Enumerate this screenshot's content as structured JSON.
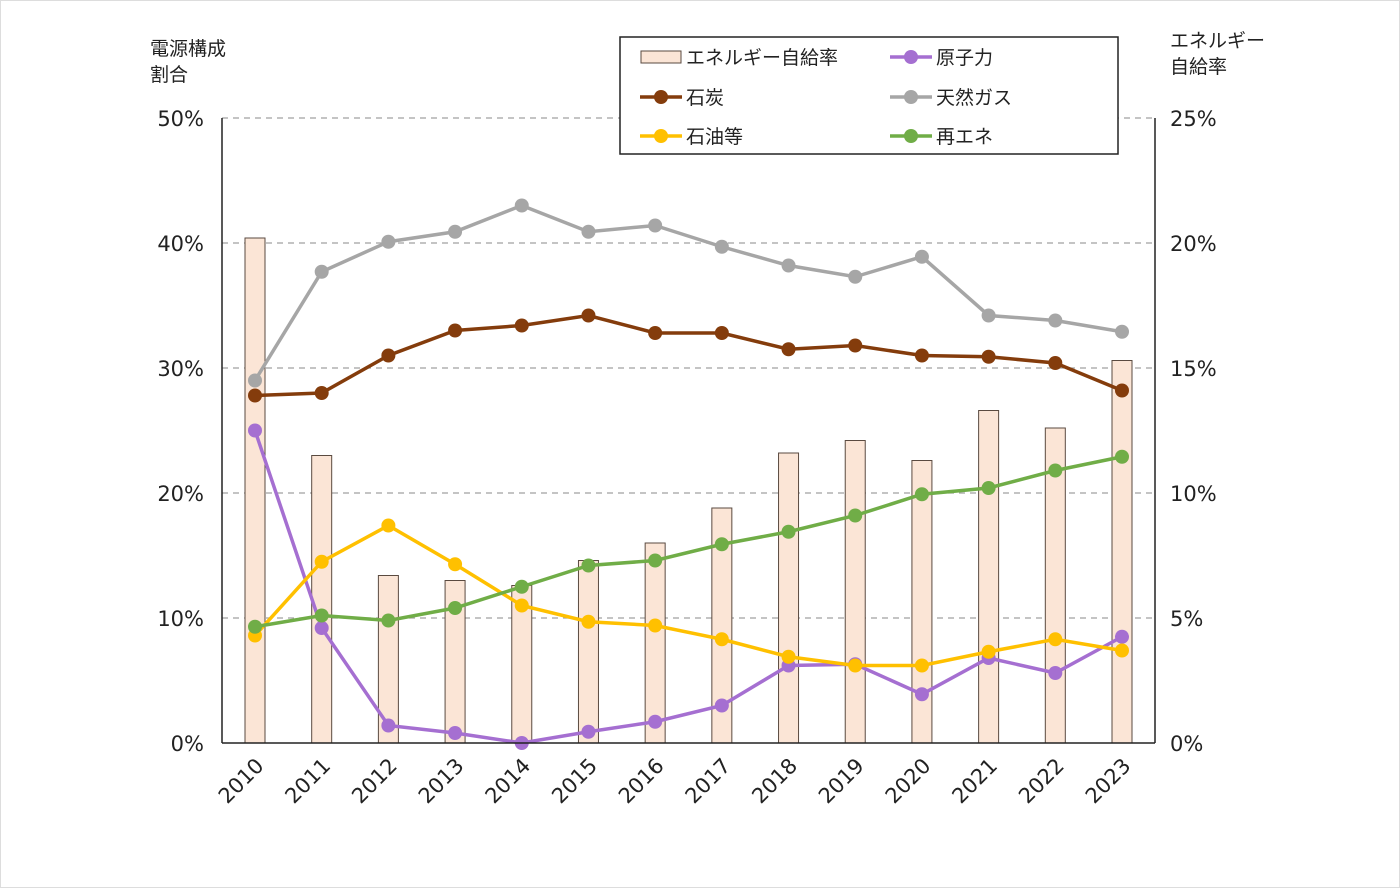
{
  "chart_data": {
    "type": "bar+line",
    "left_axis_label": [
      "電源構成",
      "割合"
    ],
    "right_axis_label": [
      "エネルギー",
      "自給率"
    ],
    "left_ylim": [
      0,
      50
    ],
    "right_ylim": [
      0,
      25
    ],
    "left_ticks": [
      "0%",
      "10%",
      "20%",
      "30%",
      "40%",
      "50%"
    ],
    "right_ticks": [
      "0%",
      "5%",
      "10%",
      "15%",
      "20%",
      "25%"
    ],
    "grid": "horizontal dashed",
    "legend_placement": "top",
    "categories": [
      "2010",
      "2011",
      "2012",
      "2013",
      "2014",
      "2015",
      "2016",
      "2017",
      "2018",
      "2019",
      "2020",
      "2021",
      "2022",
      "2023"
    ],
    "bar_series": {
      "name": "エネルギー自給率",
      "axis": "right",
      "color": "#fbe5d6",
      "edge": "#5a4a40",
      "values": [
        20.2,
        11.5,
        6.7,
        6.5,
        6.3,
        7.3,
        8.0,
        9.4,
        11.6,
        12.1,
        11.3,
        13.3,
        12.6,
        15.3
      ]
    },
    "series": [
      {
        "name": "原子力",
        "color": "#a56fd1",
        "values": [
          25.0,
          9.2,
          1.4,
          0.8,
          0.0,
          0.9,
          1.7,
          3.0,
          6.2,
          6.3,
          3.9,
          6.8,
          5.6,
          8.5
        ]
      },
      {
        "name": "石炭",
        "color": "#843c0c",
        "values": [
          27.8,
          28.0,
          31.0,
          33.0,
          33.4,
          34.2,
          32.8,
          32.8,
          31.5,
          31.8,
          31.0,
          30.9,
          30.4,
          28.2
        ]
      },
      {
        "name": "天然ガス",
        "color": "#a6a6a6",
        "values": [
          29.0,
          37.7,
          40.1,
          40.9,
          43.0,
          40.9,
          41.4,
          39.7,
          38.2,
          37.3,
          38.9,
          34.2,
          33.8,
          32.9
        ]
      },
      {
        "name": "石油等",
        "color": "#ffc000",
        "values": [
          8.6,
          14.5,
          17.4,
          14.3,
          11.0,
          9.7,
          9.4,
          8.3,
          6.9,
          6.2,
          6.2,
          7.3,
          8.3,
          7.4
        ]
      },
      {
        "name": "再エネ",
        "color": "#70ad47",
        "values": [
          9.3,
          10.2,
          9.8,
          10.8,
          12.5,
          14.2,
          14.6,
          15.9,
          16.9,
          18.2,
          19.9,
          20.4,
          21.8,
          22.9
        ]
      }
    ]
  }
}
